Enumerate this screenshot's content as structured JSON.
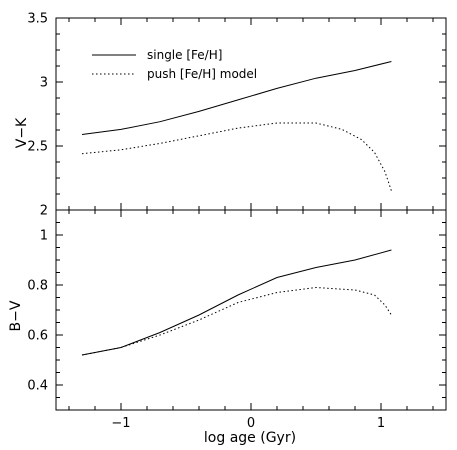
{
  "chart_data": [
    {
      "type": "line",
      "panel": "top",
      "xlabel": "",
      "ylabel": "V−K",
      "xlim": [
        -1.5,
        1.5
      ],
      "ylim": [
        2.0,
        3.5
      ],
      "yticks": [
        2,
        2.5,
        3,
        3.5
      ],
      "ytick_labels": [
        "2",
        "2.5",
        "3",
        "3.5"
      ],
      "legend_position": "top-left",
      "series": [
        {
          "name": "single [Fe/H]",
          "style": "solid",
          "x": [
            -1.3,
            -1.0,
            -0.7,
            -0.4,
            -0.1,
            0.2,
            0.5,
            0.8,
            1.08
          ],
          "y": [
            2.59,
            2.63,
            2.69,
            2.77,
            2.86,
            2.95,
            3.03,
            3.09,
            3.16
          ]
        },
        {
          "name": "push [Fe/H] model",
          "style": "dotted",
          "x": [
            -1.3,
            -1.0,
            -0.7,
            -0.4,
            -0.1,
            0.2,
            0.5,
            0.7,
            0.85,
            0.95,
            1.03,
            1.08
          ],
          "y": [
            2.44,
            2.47,
            2.52,
            2.58,
            2.64,
            2.68,
            2.68,
            2.63,
            2.55,
            2.45,
            2.3,
            2.15
          ]
        }
      ]
    },
    {
      "type": "line",
      "panel": "bottom",
      "xlabel": "log age (Gyr)",
      "ylabel": "B−V",
      "xlim": [
        -1.5,
        1.5
      ],
      "ylim": [
        0.3,
        1.1
      ],
      "xticks": [
        -1,
        0,
        1
      ],
      "xtick_labels": [
        "−1",
        "0",
        "1"
      ],
      "yticks": [
        0.4,
        0.6,
        0.8,
        1
      ],
      "ytick_labels": [
        "0.4",
        "0.6",
        "0.8",
        "1"
      ],
      "series": [
        {
          "style": "solid",
          "x": [
            -1.3,
            -1.0,
            -0.7,
            -0.4,
            -0.1,
            0.2,
            0.5,
            0.8,
            1.08
          ],
          "y": [
            0.52,
            0.55,
            0.61,
            0.68,
            0.76,
            0.83,
            0.87,
            0.9,
            0.94
          ]
        },
        {
          "style": "dotted",
          "x": [
            -1.3,
            -1.0,
            -0.7,
            -0.4,
            -0.1,
            0.2,
            0.5,
            0.8,
            0.95,
            1.03,
            1.08
          ],
          "y": [
            0.52,
            0.55,
            0.6,
            0.66,
            0.73,
            0.77,
            0.79,
            0.78,
            0.76,
            0.72,
            0.68
          ]
        }
      ]
    }
  ]
}
